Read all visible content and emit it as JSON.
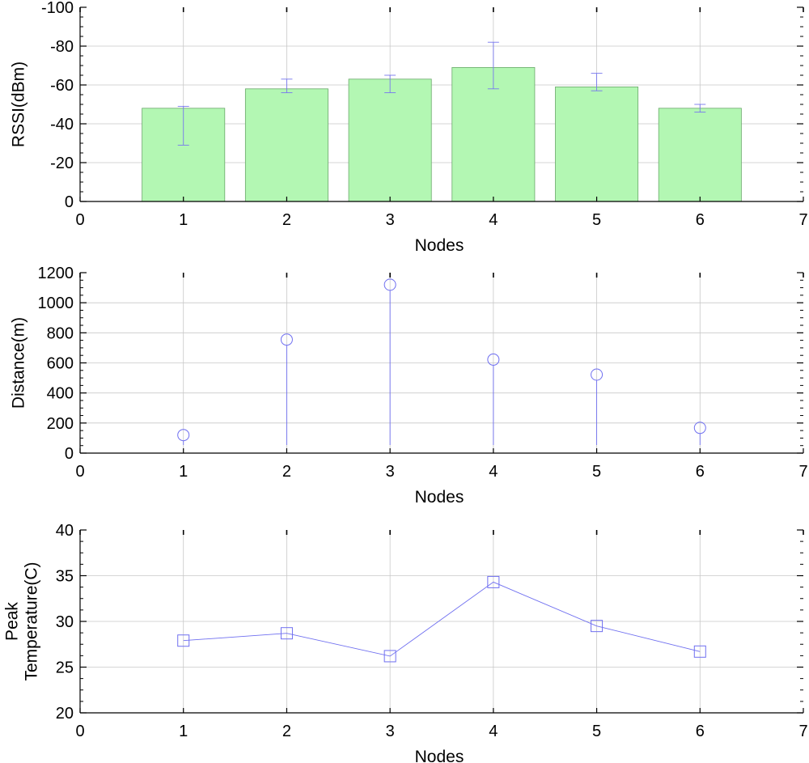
{
  "chart_data": [
    {
      "type": "bar",
      "xlabel": "Nodes",
      "ylabel": "RSSI(dBm)",
      "xlim": [
        0,
        7
      ],
      "ylim": [
        0,
        -100
      ],
      "y_reversed": true,
      "x_ticks": [
        0,
        1,
        2,
        3,
        4,
        5,
        6,
        7
      ],
      "y_ticks": [
        0,
        -20,
        -40,
        -60,
        -80,
        -100
      ],
      "grid": true,
      "x": [
        1,
        2,
        3,
        4,
        5,
        6
      ],
      "values": [
        -48,
        -58,
        -63,
        -69,
        -59,
        -48
      ],
      "error_low": [
        -29,
        -56,
        -56,
        -58,
        -57,
        -46
      ],
      "error_high": [
        -49,
        -63,
        -65,
        -82,
        -66,
        -50
      ],
      "bar_color": "#b3f7b3",
      "bar_edge": "#6aa86a",
      "error_color": "#7777ee"
    },
    {
      "type": "stem",
      "xlabel": "Nodes",
      "ylabel": "Distance(m)",
      "xlim": [
        0,
        7
      ],
      "ylim": [
        0,
        1200
      ],
      "x_ticks": [
        0,
        1,
        2,
        3,
        4,
        5,
        6,
        7
      ],
      "y_ticks": [
        0,
        200,
        400,
        600,
        800,
        1000,
        1200
      ],
      "grid": true,
      "x": [
        1,
        2,
        3,
        4,
        5,
        6
      ],
      "values": [
        120,
        755,
        1120,
        622,
        522,
        168
      ],
      "marker": "circle",
      "color": "#6f6ff0"
    },
    {
      "type": "line",
      "xlabel": "Nodes",
      "ylabel_lines": [
        "Peak",
        "Temperature(C)"
      ],
      "xlim": [
        0,
        7
      ],
      "ylim": [
        20,
        40
      ],
      "x_ticks": [
        0,
        1,
        2,
        3,
        4,
        5,
        6,
        7
      ],
      "y_ticks": [
        20,
        25,
        30,
        35,
        40
      ],
      "grid": true,
      "x": [
        1,
        2,
        3,
        4,
        5,
        6
      ],
      "values": [
        27.9,
        28.7,
        26.2,
        34.3,
        29.5,
        26.7
      ],
      "marker": "square",
      "color": "#6f6ff0"
    }
  ]
}
